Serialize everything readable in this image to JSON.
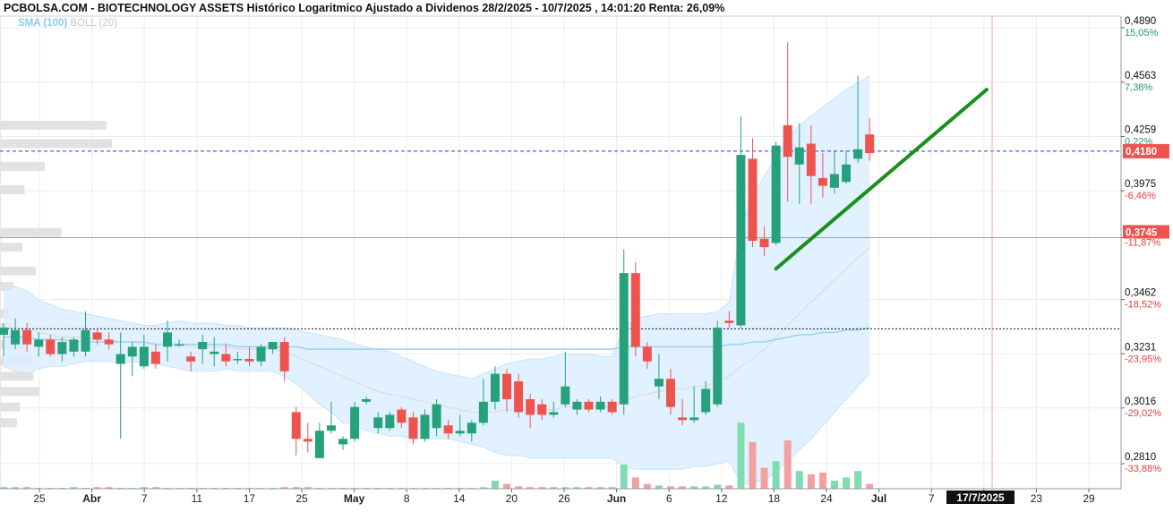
{
  "title": "PCBOLSA.COM - BIOTECHNOLOGY ASSETS Histórico Logaritmico Ajustado a Dividenos 28/2/2025 - 10/7/2025 , 14:01:20 Renta: 26,09%",
  "legend": {
    "sma": "SMA (100)",
    "boll": "BOLL (20)"
  },
  "colors": {
    "up": "#26a17b",
    "down": "#ef5350",
    "trend": "#1a8f1a",
    "band": "#dcefff",
    "sma": "#9fd2f2",
    "price_line": "#3333cc",
    "support_line": "#111111",
    "resistance_line": "#f08080",
    "vol_up": "#7fdcb0",
    "vol_down": "#f3a0a0"
  },
  "chart_data": {
    "type": "candlestick",
    "y_scale": "log",
    "y_ticks": [
      {
        "value": 0.489,
        "label": "0,4890",
        "pct": "15,05%"
      },
      {
        "value": 0.4563,
        "label": "0,4563",
        "pct": "7,38%"
      },
      {
        "value": 0.4259,
        "label": "0,4259",
        "pct": "0,22%"
      },
      {
        "value": 0.3975,
        "label": "0,3975",
        "pct": "-6,46%"
      },
      {
        "value": 0.3745,
        "label": "",
        "pct": "-11,87%"
      },
      {
        "value": 0.3462,
        "label": "0,3462",
        "pct": "-18,52%"
      },
      {
        "value": 0.3231,
        "label": "0,3231",
        "pct": "-23,95%"
      },
      {
        "value": 0.3016,
        "label": "0,3016",
        "pct": "-29,02%"
      },
      {
        "value": 0.281,
        "label": "0,2810",
        "pct": "-33,88%"
      }
    ],
    "current_price": {
      "value": 0.418,
      "label": "0,4180"
    },
    "resistance": {
      "value": 0.3745,
      "label": "0,3745"
    },
    "support_value": 0.3335,
    "x_ticks": [
      {
        "label": "25",
        "bold": false
      },
      {
        "label": "Abr",
        "bold": true
      },
      {
        "label": "7",
        "bold": false
      },
      {
        "label": "11",
        "bold": false
      },
      {
        "label": "17",
        "bold": false
      },
      {
        "label": "25",
        "bold": false
      },
      {
        "label": "May",
        "bold": true
      },
      {
        "label": "8",
        "bold": false
      },
      {
        "label": "14",
        "bold": false
      },
      {
        "label": "20",
        "bold": false
      },
      {
        "label": "26",
        "bold": false
      },
      {
        "label": "Jun",
        "bold": true
      },
      {
        "label": "6",
        "bold": false
      },
      {
        "label": "12",
        "bold": false
      },
      {
        "label": "18",
        "bold": false
      },
      {
        "label": "24",
        "bold": false
      },
      {
        "label": "Jul",
        "bold": true
      },
      {
        "label": "7",
        "bold": false
      },
      {
        "label": "1",
        "bold": false
      },
      {
        "label": "23",
        "bold": false
      },
      {
        "label": "29",
        "bold": false
      }
    ],
    "date_marker": "17/7/2025",
    "candles": [
      {
        "o": 0.331,
        "h": 0.336,
        "l": 0.322,
        "c": 0.334
      },
      {
        "o": 0.327,
        "h": 0.338,
        "l": 0.325,
        "c": 0.333
      },
      {
        "o": 0.333,
        "h": 0.336,
        "l": 0.324,
        "c": 0.327
      },
      {
        "o": 0.326,
        "h": 0.332,
        "l": 0.322,
        "c": 0.329
      },
      {
        "o": 0.329,
        "h": 0.331,
        "l": 0.322,
        "c": 0.323
      },
      {
        "o": 0.323,
        "h": 0.33,
        "l": 0.32,
        "c": 0.328
      },
      {
        "o": 0.324,
        "h": 0.33,
        "l": 0.322,
        "c": 0.329
      },
      {
        "o": 0.324,
        "h": 0.341,
        "l": 0.322,
        "c": 0.333
      },
      {
        "o": 0.332,
        "h": 0.334,
        "l": 0.327,
        "c": 0.329
      },
      {
        "o": 0.329,
        "h": 0.332,
        "l": 0.325,
        "c": 0.327
      },
      {
        "o": 0.319,
        "h": 0.332,
        "l": 0.29,
        "c": 0.323
      },
      {
        "o": 0.322,
        "h": 0.328,
        "l": 0.314,
        "c": 0.326
      },
      {
        "o": 0.318,
        "h": 0.331,
        "l": 0.317,
        "c": 0.326
      },
      {
        "o": 0.324,
        "h": 0.327,
        "l": 0.317,
        "c": 0.319
      },
      {
        "o": 0.326,
        "h": 0.337,
        "l": 0.32,
        "c": 0.332
      },
      {
        "o": 0.327,
        "h": 0.329,
        "l": 0.326,
        "c": 0.327
      },
      {
        "o": 0.322,
        "h": 0.324,
        "l": 0.316,
        "c": 0.32
      },
      {
        "o": 0.325,
        "h": 0.331,
        "l": 0.319,
        "c": 0.328
      },
      {
        "o": 0.323,
        "h": 0.33,
        "l": 0.318,
        "c": 0.324
      },
      {
        "o": 0.323,
        "h": 0.327,
        "l": 0.318,
        "c": 0.32
      },
      {
        "o": 0.321,
        "h": 0.324,
        "l": 0.319,
        "c": 0.321
      },
      {
        "o": 0.321,
        "h": 0.326,
        "l": 0.318,
        "c": 0.32
      },
      {
        "o": 0.32,
        "h": 0.327,
        "l": 0.318,
        "c": 0.326
      },
      {
        "o": 0.325,
        "h": 0.327,
        "l": 0.323,
        "c": 0.328
      },
      {
        "o": 0.328,
        "h": 0.33,
        "l": 0.312,
        "c": 0.316
      },
      {
        "o": 0.3,
        "h": 0.302,
        "l": 0.284,
        "c": 0.29
      },
      {
        "o": 0.29,
        "h": 0.296,
        "l": 0.285,
        "c": 0.289
      },
      {
        "o": 0.283,
        "h": 0.296,
        "l": 0.283,
        "c": 0.293
      },
      {
        "o": 0.293,
        "h": 0.304,
        "l": 0.292,
        "c": 0.295
      },
      {
        "o": 0.288,
        "h": 0.291,
        "l": 0.286,
        "c": 0.29
      },
      {
        "o": 0.29,
        "h": 0.304,
        "l": 0.289,
        "c": 0.302
      },
      {
        "o": 0.304,
        "h": 0.306,
        "l": 0.303,
        "c": 0.305
      },
      {
        "o": 0.294,
        "h": 0.3,
        "l": 0.292,
        "c": 0.298
      },
      {
        "o": 0.294,
        "h": 0.3,
        "l": 0.293,
        "c": 0.299
      },
      {
        "o": 0.301,
        "h": 0.302,
        "l": 0.294,
        "c": 0.296
      },
      {
        "o": 0.298,
        "h": 0.3,
        "l": 0.288,
        "c": 0.29
      },
      {
        "o": 0.29,
        "h": 0.301,
        "l": 0.289,
        "c": 0.299
      },
      {
        "o": 0.294,
        "h": 0.305,
        "l": 0.291,
        "c": 0.303
      },
      {
        "o": 0.295,
        "h": 0.297,
        "l": 0.29,
        "c": 0.292
      },
      {
        "o": 0.292,
        "h": 0.299,
        "l": 0.291,
        "c": 0.293
      },
      {
        "o": 0.292,
        "h": 0.297,
        "l": 0.289,
        "c": 0.296
      },
      {
        "o": 0.296,
        "h": 0.313,
        "l": 0.295,
        "c": 0.304
      },
      {
        "o": 0.304,
        "h": 0.318,
        "l": 0.301,
        "c": 0.315
      },
      {
        "o": 0.315,
        "h": 0.317,
        "l": 0.3,
        "c": 0.305
      },
      {
        "o": 0.312,
        "h": 0.315,
        "l": 0.298,
        "c": 0.3
      },
      {
        "o": 0.305,
        "h": 0.307,
        "l": 0.294,
        "c": 0.299
      },
      {
        "o": 0.303,
        "h": 0.305,
        "l": 0.297,
        "c": 0.299
      },
      {
        "o": 0.299,
        "h": 0.304,
        "l": 0.298,
        "c": 0.3
      },
      {
        "o": 0.303,
        "h": 0.324,
        "l": 0.302,
        "c": 0.31
      },
      {
        "o": 0.301,
        "h": 0.305,
        "l": 0.299,
        "c": 0.304
      },
      {
        "o": 0.304,
        "h": 0.305,
        "l": 0.3,
        "c": 0.301
      },
      {
        "o": 0.301,
        "h": 0.306,
        "l": 0.3,
        "c": 0.304
      },
      {
        "o": 0.304,
        "h": 0.305,
        "l": 0.299,
        "c": 0.3
      },
      {
        "o": 0.303,
        "h": 0.369,
        "l": 0.299,
        "c": 0.358
      },
      {
        "o": 0.358,
        "h": 0.363,
        "l": 0.322,
        "c": 0.326
      },
      {
        "o": 0.326,
        "h": 0.328,
        "l": 0.317,
        "c": 0.32
      },
      {
        "o": 0.31,
        "h": 0.323,
        "l": 0.305,
        "c": 0.313
      },
      {
        "o": 0.313,
        "h": 0.317,
        "l": 0.299,
        "c": 0.302
      },
      {
        "o": 0.298,
        "h": 0.305,
        "l": 0.295,
        "c": 0.297
      },
      {
        "o": 0.297,
        "h": 0.31,
        "l": 0.296,
        "c": 0.298
      },
      {
        "o": 0.3,
        "h": 0.312,
        "l": 0.299,
        "c": 0.309
      },
      {
        "o": 0.303,
        "h": 0.337,
        "l": 0.302,
        "c": 0.334
      },
      {
        "o": 0.337,
        "h": 0.341,
        "l": 0.334,
        "c": 0.336
      },
      {
        "o": 0.335,
        "h": 0.437,
        "l": 0.334,
        "c": 0.416
      },
      {
        "o": 0.414,
        "h": 0.425,
        "l": 0.37,
        "c": 0.373
      },
      {
        "o": 0.374,
        "h": 0.38,
        "l": 0.366,
        "c": 0.37
      },
      {
        "o": 0.372,
        "h": 0.423,
        "l": 0.371,
        "c": 0.421
      },
      {
        "o": 0.432,
        "h": 0.48,
        "l": 0.392,
        "c": 0.415
      },
      {
        "o": 0.411,
        "h": 0.433,
        "l": 0.391,
        "c": 0.42
      },
      {
        "o": 0.422,
        "h": 0.432,
        "l": 0.391,
        "c": 0.405
      },
      {
        "o": 0.404,
        "h": 0.417,
        "l": 0.394,
        "c": 0.4
      },
      {
        "o": 0.399,
        "h": 0.418,
        "l": 0.396,
        "c": 0.406
      },
      {
        "o": 0.402,
        "h": 0.418,
        "l": 0.401,
        "c": 0.411
      },
      {
        "o": 0.414,
        "h": 0.46,
        "l": 0.412,
        "c": 0.419
      },
      {
        "o": 0.427,
        "h": 0.436,
        "l": 0.413,
        "c": 0.417
      }
    ],
    "bollinger": {
      "upper": [
        0.35,
        0.352,
        0.35,
        0.346,
        0.344,
        0.342,
        0.341,
        0.34,
        0.339,
        0.338,
        0.337,
        0.336,
        0.335,
        0.335,
        0.336,
        0.337,
        0.336,
        0.336,
        0.336,
        0.335,
        0.335,
        0.334,
        0.334,
        0.334,
        0.334,
        0.333,
        0.332,
        0.331,
        0.33,
        0.329,
        0.327,
        0.326,
        0.325,
        0.324,
        0.322,
        0.32,
        0.318,
        0.316,
        0.315,
        0.314,
        0.313,
        0.315,
        0.317,
        0.319,
        0.32,
        0.321,
        0.321,
        0.322,
        0.323,
        0.323,
        0.323,
        0.322,
        0.322,
        0.334,
        0.338,
        0.339,
        0.34,
        0.34,
        0.34,
        0.34,
        0.34,
        0.341,
        0.345,
        0.38,
        0.395,
        0.405,
        0.415,
        0.425,
        0.432,
        0.437,
        0.442,
        0.447,
        0.452,
        0.456,
        0.46
      ],
      "middle": [
        0.334,
        0.334,
        0.333,
        0.332,
        0.331,
        0.33,
        0.33,
        0.33,
        0.329,
        0.329,
        0.328,
        0.328,
        0.327,
        0.327,
        0.327,
        0.327,
        0.326,
        0.326,
        0.326,
        0.326,
        0.325,
        0.325,
        0.325,
        0.325,
        0.324,
        0.322,
        0.32,
        0.318,
        0.316,
        0.314,
        0.312,
        0.31,
        0.308,
        0.307,
        0.306,
        0.305,
        0.304,
        0.303,
        0.302,
        0.301,
        0.3,
        0.3,
        0.3,
        0.301,
        0.301,
        0.301,
        0.301,
        0.301,
        0.302,
        0.302,
        0.302,
        0.302,
        0.302,
        0.304,
        0.306,
        0.307,
        0.308,
        0.309,
        0.309,
        0.31,
        0.31,
        0.312,
        0.314,
        0.318,
        0.321,
        0.325,
        0.33,
        0.335,
        0.34,
        0.345,
        0.35,
        0.355,
        0.36,
        0.365,
        0.37
      ],
      "lower": [
        0.318,
        0.316,
        0.315,
        0.317,
        0.318,
        0.318,
        0.319,
        0.32,
        0.32,
        0.32,
        0.319,
        0.32,
        0.319,
        0.319,
        0.318,
        0.317,
        0.316,
        0.316,
        0.316,
        0.317,
        0.316,
        0.316,
        0.316,
        0.316,
        0.314,
        0.311,
        0.307,
        0.303,
        0.3,
        0.296,
        0.295,
        0.293,
        0.292,
        0.291,
        0.291,
        0.29,
        0.29,
        0.29,
        0.29,
        0.289,
        0.288,
        0.287,
        0.285,
        0.284,
        0.284,
        0.283,
        0.283,
        0.283,
        0.283,
        0.283,
        0.283,
        0.283,
        0.283,
        0.28,
        0.279,
        0.279,
        0.279,
        0.279,
        0.279,
        0.28,
        0.28,
        0.281,
        0.282,
        0.274,
        0.274,
        0.275,
        0.278,
        0.282,
        0.286,
        0.29,
        0.295,
        0.3,
        0.305,
        0.31,
        0.315
      ]
    },
    "sma100": [
      0.33,
      0.33,
      0.33,
      0.329,
      0.329,
      0.329,
      0.328,
      0.328,
      0.328,
      0.328,
      0.328,
      0.328,
      0.328,
      0.327,
      0.327,
      0.327,
      0.327,
      0.327,
      0.327,
      0.327,
      0.326,
      0.326,
      0.326,
      0.326,
      0.326,
      0.326,
      0.325,
      0.325,
      0.325,
      0.325,
      0.325,
      0.325,
      0.325,
      0.325,
      0.325,
      0.325,
      0.325,
      0.325,
      0.325,
      0.325,
      0.325,
      0.325,
      0.325,
      0.325,
      0.325,
      0.325,
      0.325,
      0.325,
      0.325,
      0.325,
      0.325,
      0.325,
      0.325,
      0.326,
      0.326,
      0.326,
      0.326,
      0.326,
      0.326,
      0.326,
      0.326,
      0.326,
      0.327,
      0.327,
      0.328,
      0.328,
      0.329,
      0.33,
      0.331,
      0.331,
      0.332,
      0.332,
      0.333,
      0.333,
      0.334
    ],
    "volume": [
      0.02,
      0.02,
      0.02,
      0.01,
      0.01,
      0.01,
      0.02,
      0.01,
      0.02,
      0.02,
      0.01,
      0.01,
      0.02,
      0.02,
      0.01,
      0.01,
      0.01,
      0.01,
      0.01,
      0.01,
      0.01,
      0.01,
      0.01,
      0.01,
      0.02,
      0.02,
      0.02,
      0.01,
      0.01,
      0.01,
      0.01,
      0.01,
      0.01,
      0.01,
      0.01,
      0.01,
      0.01,
      0.01,
      0.01,
      0.01,
      0.01,
      0.02,
      0.1,
      0.06,
      0.03,
      0.02,
      0.02,
      0.02,
      0.02,
      0.02,
      0.02,
      0.02,
      0.02,
      0.3,
      0.14,
      0.06,
      0.04,
      0.03,
      0.03,
      0.03,
      0.03,
      0.05,
      0.04,
      0.82,
      0.58,
      0.26,
      0.34,
      0.6,
      0.22,
      0.18,
      0.2,
      0.1,
      0.14,
      0.22,
      0.06
    ],
    "volume_profile": [
      {
        "price": 0.432,
        "width": 0.95
      },
      {
        "price": 0.422,
        "width": 1.0
      },
      {
        "price": 0.41,
        "width": 0.4
      },
      {
        "price": 0.398,
        "width": 0.22
      },
      {
        "price": 0.377,
        "width": 0.55
      },
      {
        "price": 0.37,
        "width": 0.2
      },
      {
        "price": 0.359,
        "width": 0.32
      },
      {
        "price": 0.352,
        "width": 0.12
      },
      {
        "price": 0.34,
        "width": 0.08
      },
      {
        "price": 0.334,
        "width": 0.1
      },
      {
        "price": 0.327,
        "width": 0.22
      },
      {
        "price": 0.32,
        "width": 0.28
      },
      {
        "price": 0.314,
        "width": 0.3
      },
      {
        "price": 0.308,
        "width": 0.35
      },
      {
        "price": 0.302,
        "width": 0.18
      },
      {
        "price": 0.296,
        "width": 0.15
      }
    ],
    "trend_line": {
      "from": {
        "index": 66,
        "value": 0.36
      },
      "to": {
        "index": 84,
        "value": 0.452
      }
    }
  }
}
